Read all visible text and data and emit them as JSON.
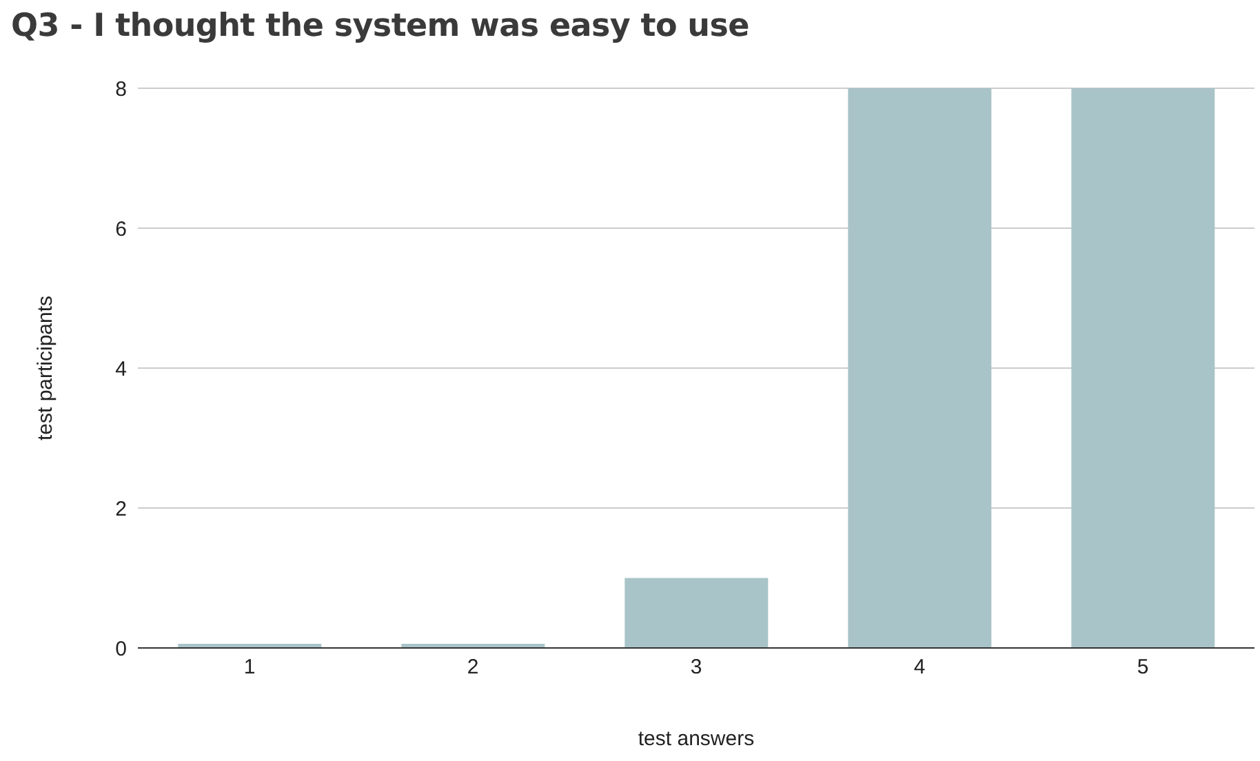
{
  "chart_data": {
    "type": "bar",
    "title": "Q3 - I thought the system was easy to use",
    "xlabel": "test answers",
    "ylabel": "test participants",
    "categories": [
      "1",
      "2",
      "3",
      "4",
      "5"
    ],
    "values": [
      0,
      0,
      1,
      8,
      8
    ],
    "color": "#a9c4c8",
    "ylim": [
      0,
      8
    ],
    "yticks": [
      0,
      2,
      4,
      6,
      8
    ],
    "grid": "y"
  }
}
